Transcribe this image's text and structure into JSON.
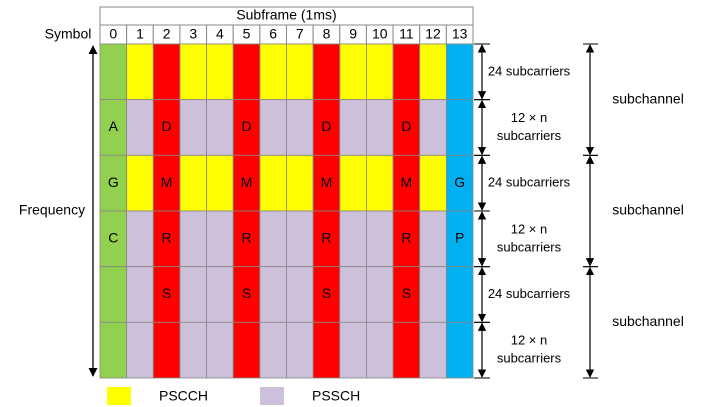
{
  "header": {
    "title": "Subframe (1ms)",
    "symbol_label": "Symbol",
    "symbols": [
      "0",
      "1",
      "2",
      "3",
      "4",
      "5",
      "6",
      "7",
      "8",
      "9",
      "10",
      "11",
      "12",
      "13"
    ]
  },
  "grid": {
    "rows": [
      [
        null,
        null,
        null,
        null,
        null,
        null,
        null,
        null,
        null,
        null,
        null,
        null,
        null,
        null
      ],
      [
        "A",
        null,
        "D",
        null,
        null,
        "D",
        null,
        null,
        "D",
        null,
        null,
        "D",
        null,
        null
      ],
      [
        "G",
        null,
        "M",
        null,
        null,
        "M",
        null,
        null,
        "M",
        null,
        null,
        "M",
        null,
        "G"
      ],
      [
        "C",
        null,
        "R",
        null,
        null,
        "R",
        null,
        null,
        "R",
        null,
        null,
        "R",
        null,
        "P"
      ],
      [
        null,
        null,
        "S",
        null,
        null,
        "S",
        null,
        null,
        "S",
        null,
        null,
        "S",
        null,
        null
      ],
      [
        null,
        null,
        null,
        null,
        null,
        null,
        null,
        null,
        null,
        null,
        null,
        null,
        null,
        null
      ]
    ]
  },
  "frequency_label": "Frequency",
  "row_labels": [
    [
      "24 subcarriers"
    ],
    [
      "12 × n",
      "subcarriers"
    ],
    [
      "24 subcarriers"
    ],
    [
      "12 × n",
      "subcarriers"
    ],
    [
      "24 subcarriers"
    ],
    [
      "12 × n",
      "subcarriers"
    ]
  ],
  "subchannel_labels": [
    "subchannel",
    "subchannel",
    "subchannel"
  ],
  "legend": [
    {
      "label": "PSCCH"
    },
    {
      "label": "PSSCH"
    }
  ]
}
